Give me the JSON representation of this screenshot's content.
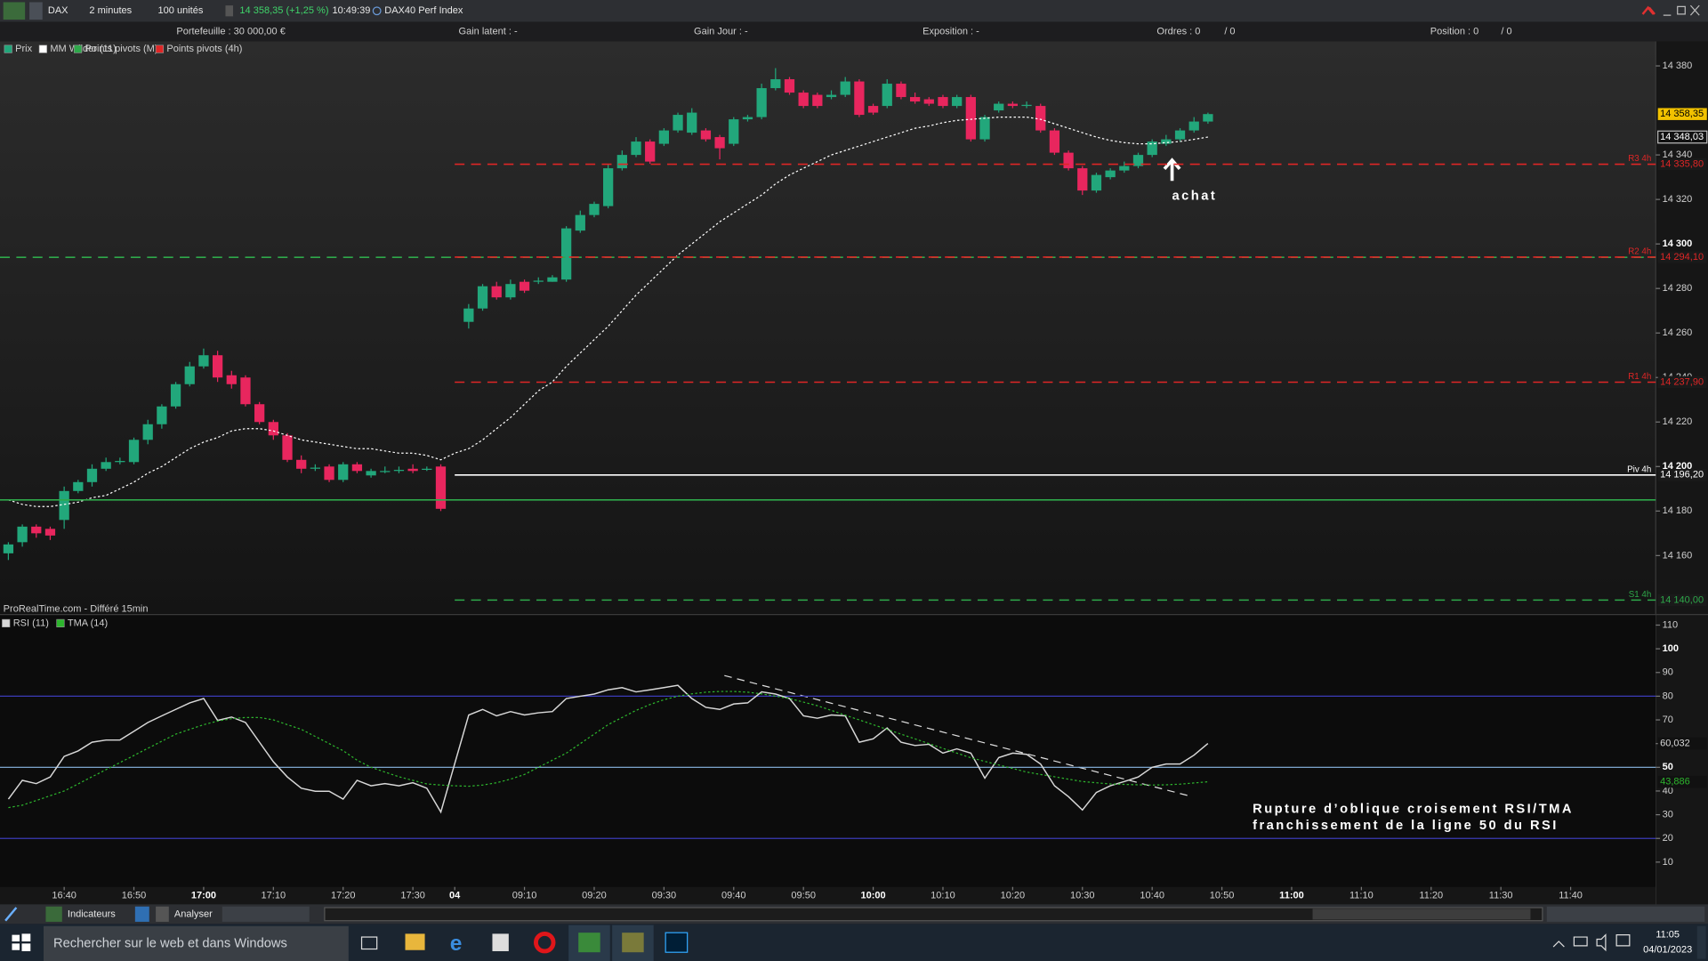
{
  "toolbar": {
    "instrument": "DAX",
    "timeframe": "2 minutes",
    "units": "100 unités",
    "quote": "14 358,35 (+1,25 %)",
    "time": "10:49:39",
    "name": "DAX40 Perf Index"
  },
  "infobar": {
    "portfolio": "Portefeuille : 30 000,00 €",
    "unrealized": "Gain latent : -",
    "daily": "Gain Jour : -",
    "exposure": "Exposition : -",
    "orders": "Ordres : 0",
    "orders_total": "/ 0",
    "position": "Position : 0",
    "position_total": "/ 0"
  },
  "chart_data": [
    {
      "type": "candlestick",
      "source": "ProRealTime.com - Différé 15min",
      "xlim": [
        -0.6,
        118.1
      ],
      "ylim": [
        14134,
        14391
      ],
      "yticks": [
        {
          "value": 14160,
          "label": "14 160"
        },
        {
          "value": 14180,
          "label": "14 180"
        },
        {
          "value": 14200,
          "label": "14 200",
          "bold": true
        },
        {
          "value": 14220,
          "label": "14 220"
        },
        {
          "value": 14240,
          "label": "14 240"
        },
        {
          "value": 14260,
          "label": "14 260"
        },
        {
          "value": 14280,
          "label": "14 280"
        },
        {
          "value": 14300,
          "label": "14 300",
          "bold": true
        },
        {
          "value": 14320,
          "label": "14 320"
        },
        {
          "value": 14340,
          "label": "14 340"
        },
        {
          "value": 14380,
          "label": "14 380"
        }
      ],
      "annotations": [
        {
          "text": "achat"
        }
      ],
      "series": [
        {
          "name": "Prix",
          "up_color": "#22a77b",
          "down_color": "#e8265e",
          "last_label": "14 358,35",
          "open": [
            14161,
            14166,
            14173,
            14172,
            14176,
            14189,
            14193,
            14199,
            14202,
            14202,
            14212,
            14219,
            14227,
            14237,
            14245,
            14250,
            14241,
            14240,
            14228,
            14220,
            14214,
            14203,
            14199,
            14200,
            14194,
            14201,
            14196,
            14198,
            14198,
            14199,
            14199,
            14200,
            null,
            14265,
            14271,
            14281,
            14276,
            14283,
            14283,
            14283,
            14284,
            14306,
            14313,
            14317,
            14334,
            14340,
            14346,
            14345,
            14351,
            14350,
            14351,
            14348,
            14345,
            14356,
            14357,
            14370,
            14374,
            14368,
            14367,
            14366,
            14367,
            14373,
            14362,
            14362,
            14372,
            14366,
            14365,
            14366,
            14362,
            14366,
            14347,
            14360,
            14363,
            14362,
            14362,
            14351,
            14341,
            14334,
            14324,
            14330,
            14333,
            14335,
            14340,
            14345,
            14347,
            14351,
            14355
          ],
          "high": [
            14166,
            14174,
            14174,
            14173,
            14191,
            14194,
            14201,
            14204,
            14204,
            14213,
            14221,
            14228,
            14238,
            14247,
            14253,
            14252,
            14243,
            14241,
            14229,
            14221,
            14215,
            14205,
            14201,
            14201,
            14202,
            14202,
            14199,
            14200,
            14200,
            14201,
            14200,
            14201,
            null,
            14273,
            14282,
            14283,
            14284,
            14284,
            14285,
            14286,
            14308,
            14315,
            14319,
            14336,
            14342,
            14348,
            14347,
            14352,
            14359,
            14361,
            14352,
            14349,
            14357,
            14358,
            14372,
            14379,
            14375,
            14369,
            14368,
            14369,
            14375,
            14374,
            14363,
            14374,
            14373,
            14368,
            14366,
            14367,
            14367,
            14367,
            14358,
            14364,
            14364,
            14364,
            14363,
            14352,
            14342,
            14335,
            14332,
            14334,
            14337,
            14341,
            14347,
            14349,
            14352,
            14357,
            14359
          ],
          "low": [
            14158,
            14164,
            14168,
            14167,
            14172,
            14188,
            14191,
            14198,
            14201,
            14201,
            14210,
            14217,
            14226,
            14236,
            14244,
            14238,
            14235,
            14227,
            14219,
            14212,
            14202,
            14197,
            14198,
            14193,
            14193,
            14197,
            14195,
            14197,
            14197,
            14197,
            14198,
            14180,
            null,
            14262,
            14270,
            14275,
            14275,
            14278,
            14282,
            14283,
            14283,
            14305,
            14312,
            14316,
            14333,
            14339,
            14336,
            14344,
            14350,
            14349,
            14346,
            14338,
            14344,
            14355,
            14356,
            14369,
            14367,
            14361,
            14361,
            14365,
            14366,
            14357,
            14358,
            14361,
            14365,
            14363,
            14362,
            14361,
            14361,
            14346,
            14346,
            14359,
            14361,
            14361,
            14350,
            14340,
            14333,
            14322,
            14323,
            14329,
            14332,
            14334,
            14339,
            14344,
            14346,
            14350,
            14354
          ],
          "close": [
            14165,
            14173,
            14170,
            14169,
            14189,
            14193,
            14199,
            14202,
            14202.5,
            14212,
            14219,
            14227,
            14237,
            14245,
            14250,
            14240,
            14237,
            14228,
            14220,
            14214,
            14203,
            14199,
            14199.5,
            14194,
            14201,
            14198,
            14198,
            14198,
            14198.5,
            14198,
            14199,
            14181,
            null,
            14271,
            14281,
            14276,
            14282,
            14279,
            14283.5,
            14285,
            14307,
            14313,
            14318,
            14334,
            14340,
            14346,
            14337,
            14351,
            14358,
            14359,
            14347,
            14343,
            14356,
            14357,
            14370,
            14374,
            14368,
            14362,
            14362,
            14367,
            14373,
            14358,
            14359,
            14372,
            14366,
            14364,
            14363,
            14362,
            14366,
            14347,
            14357,
            14363,
            14362,
            14362.5,
            14351,
            14341,
            14334,
            14324,
            14331,
            14333,
            14335,
            14340,
            14346,
            14347,
            14351,
            14355,
            14358.35
          ]
        },
        {
          "name": "MM Wilder (11)",
          "color": "#ffffff",
          "dash": true,
          "last_label": "14 348,03",
          "values": [
            14185,
            14183,
            14182,
            14182,
            14183,
            14184,
            14186,
            14187,
            14190,
            14193,
            14197,
            14200,
            14204,
            14208,
            14211,
            14213,
            14216,
            14217,
            14217,
            14216,
            14214,
            14212,
            14211,
            14210,
            14209,
            14208,
            14208,
            14207,
            14206,
            14206,
            14205,
            14203,
            14206,
            14208,
            14212,
            14217,
            14222,
            14228,
            14234,
            14238,
            14245,
            14251,
            14257,
            14263,
            14270,
            14277,
            14283,
            14289,
            14295,
            14300,
            14305,
            14310,
            14314,
            14318,
            14322,
            14327,
            14331,
            14334,
            14337,
            14340,
            14342,
            14344,
            14346,
            14348,
            14350,
            14352,
            14353,
            14354.5,
            14355.5,
            14356,
            14356.5,
            14357,
            14357,
            14357,
            14356,
            14354,
            14352,
            14350,
            14348,
            14346.5,
            14345.5,
            14345,
            14345,
            14345.5,
            14346,
            14347,
            14348.03
          ]
        },
        {
          "name": "Points pivots (M)",
          "color": "#2ea84a",
          "levels": [
            {
              "value": 14294,
              "dash": true
            },
            {
              "value": 14185,
              "dash": false
            }
          ]
        },
        {
          "name": "Points pivots (4h)",
          "color": "#e02626",
          "levels": [
            {
              "label": "R3 4h",
              "value": 14335.8,
              "value_label": "14 335,80",
              "color": "#e02626",
              "dash": true
            },
            {
              "label": "R2 4h",
              "value": 14294.1,
              "value_label": "14 294,10",
              "color": "#e02626",
              "dash": true
            },
            {
              "label": "R1 4h",
              "value": 14237.9,
              "value_label": "14 237,90",
              "color": "#e02626",
              "dash": true
            },
            {
              "label": "Piv 4h",
              "value": 14196.2,
              "value_label": "14 196,20",
              "color": "#ffffff",
              "dash": false
            },
            {
              "label": "S1 4h",
              "value": 14140,
              "value_label": "14 140,00",
              "color": "#2ea84a",
              "dash": true
            }
          ]
        }
      ]
    },
    {
      "type": "line",
      "xlim": [
        -0.6,
        118.1
      ],
      "ylim": [
        0,
        114
      ],
      "yticks": [
        10,
        20,
        30,
        40,
        {
          "value": 50,
          "label": "50",
          "bold": true
        },
        60,
        70,
        80,
        90,
        {
          "value": 100,
          "label": "100",
          "bold": true
        },
        110
      ],
      "xticks": [
        {
          "value": 4,
          "label": "16:40"
        },
        {
          "value": 9,
          "label": "16:50"
        },
        {
          "value": 14,
          "label": "17:00",
          "bold": true
        },
        {
          "value": 19,
          "label": "17:10"
        },
        {
          "value": 24,
          "label": "17:20"
        },
        {
          "value": 29,
          "label": "17:30"
        },
        {
          "value": 32,
          "label": "04",
          "bold": true
        },
        {
          "value": 37,
          "label": "09:10"
        },
        {
          "value": 42,
          "label": "09:20"
        },
        {
          "value": 47,
          "label": "09:30"
        },
        {
          "value": 52,
          "label": "09:40"
        },
        {
          "value": 57,
          "label": "09:50"
        },
        {
          "value": 62,
          "label": "10:00",
          "bold": true
        },
        {
          "value": 67,
          "label": "10:10"
        },
        {
          "value": 72,
          "label": "10:20"
        },
        {
          "value": 77,
          "label": "10:30"
        },
        {
          "value": 82,
          "label": "10:40"
        },
        {
          "value": 87,
          "label": "10:50"
        },
        {
          "value": 92,
          "label": "11:00",
          "bold": true
        },
        {
          "value": 97,
          "label": "11:10"
        },
        {
          "value": 102,
          "label": "11:20"
        },
        {
          "value": 107,
          "label": "11:30"
        },
        {
          "value": 112,
          "label": "11:40"
        }
      ],
      "levels": [
        {
          "value": 80,
          "color": "#3b3bb8"
        },
        {
          "value": 50,
          "color": "#8ab8e6"
        },
        {
          "value": 20,
          "color": "#3b3bb8"
        }
      ],
      "annotation": [
        "Rupture d’oblique croisement RSI/TMA",
        "franchissement de la ligne 50 du RSI"
      ],
      "series": [
        {
          "name": "RSI (11)",
          "color": "#d8d8d8",
          "dash": false,
          "value_label": "60,032",
          "values": [
            36.6,
            44.5,
            43.1,
            45.9,
            54.6,
            56.9,
            60.6,
            61.5,
            61.5,
            65.2,
            68.9,
            71.7,
            74.4,
            77.2,
            79,
            69.8,
            71.2,
            68.9,
            60.6,
            52.3,
            45.9,
            41.2,
            39.9,
            39.9,
            36.6,
            44.5,
            42.2,
            43.1,
            42.2,
            43.5,
            41.2,
            31.1,
            51.6,
            72.1,
            74.4,
            71.7,
            73.5,
            72.1,
            73,
            73.5,
            79,
            80,
            80.9,
            82.7,
            83.6,
            81.8,
            82.7,
            83.6,
            84.6,
            79,
            75.3,
            74.4,
            76.7,
            77.2,
            81.8,
            80.9,
            79,
            71.7,
            70.7,
            72.1,
            71.7,
            60.6,
            62,
            66.6,
            60.6,
            59.2,
            59.7,
            56,
            57.8,
            56,
            45.4,
            54.1,
            56,
            55.5,
            51.4,
            42.2,
            37.6,
            32,
            39.4,
            42.2,
            44,
            45.9,
            50,
            51.4,
            51.4,
            55.1,
            60.032
          ]
        },
        {
          "name": "TMA (14)",
          "color": "#2db52d",
          "dash": true,
          "value_label": "43,886",
          "values": [
            33,
            34,
            36,
            38,
            40,
            43,
            46,
            49,
            52,
            55,
            58,
            61,
            64,
            66,
            68,
            69.5,
            70.5,
            71,
            71,
            70,
            68,
            66,
            63,
            60,
            57,
            53,
            50,
            48,
            46,
            44.5,
            43,
            42.5,
            42.2,
            42,
            42.5,
            43.5,
            45,
            47,
            50,
            53,
            56,
            60,
            64,
            68,
            71,
            74,
            76.5,
            78.5,
            80,
            81,
            81.7,
            82,
            82,
            81.7,
            81,
            80,
            79,
            77.5,
            76,
            74,
            72,
            70,
            68,
            66,
            64,
            62,
            60,
            58,
            56,
            54,
            52.5,
            51,
            49.5,
            48,
            47,
            46,
            45,
            44,
            43.5,
            43,
            42.8,
            42.6,
            42.5,
            42.6,
            42.9,
            43.4,
            43.886
          ]
        }
      ]
    }
  ],
  "bottom_toolbar": {
    "indicators": "Indicateurs",
    "analyse": "Analyser"
  },
  "taskbar": {
    "search": "Rechercher sur le web et dans Windows",
    "time": "11:05",
    "date": "04/01/2023"
  }
}
